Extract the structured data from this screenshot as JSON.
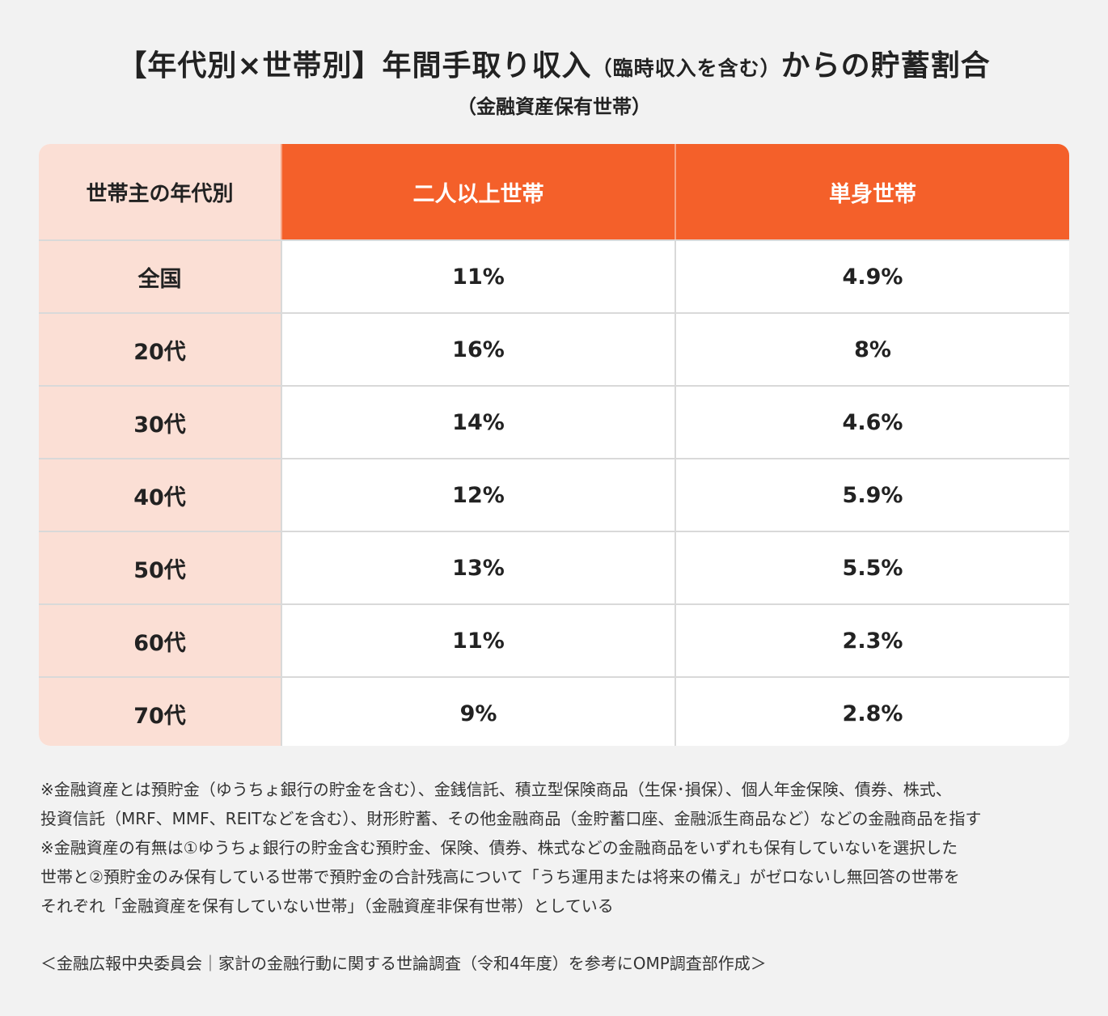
{
  "title": {
    "part1": "【年代別×世帯別】年間手取り収入",
    "part2": "（臨時収入を含む）",
    "part3": "からの貯蓄割合",
    "subtitle": "（金融資産保有世帯）"
  },
  "chart_data": {
    "type": "table",
    "title": "【年代別×世帯別】年間手取り収入（臨時収入を含む）からの貯蓄割合",
    "subtitle": "（金融資産保有世帯）",
    "columns": [
      "世帯主の年代別",
      "二人以上世帯",
      "単身世帯"
    ],
    "rows": [
      [
        "全国",
        "11%",
        "4.9%"
      ],
      [
        "20代",
        "16%",
        "8%"
      ],
      [
        "30代",
        "14%",
        "4.6%"
      ],
      [
        "40代",
        "12%",
        "5.9%"
      ],
      [
        "50代",
        "13%",
        "5.5%"
      ],
      [
        "60代",
        "11%",
        "2.3%"
      ],
      [
        "70代",
        "9%",
        "2.8%"
      ]
    ],
    "colors": {
      "header": "#f4602a",
      "label_column": "#fbdfd5",
      "background": "#f2f2f2"
    }
  },
  "notes": [
    "※金融資産とは預貯金（ゆうちょ銀行の貯金を含む）、金銭信託、積立型保険商品（生保･損保）、個人年金保険、債券、株式、",
    "投資信託（MRF、MMF、REITなどを含む）、財形貯蓄、その他金融商品（金貯蓄口座、金融派生商品など）などの金融商品を指す",
    "※金融資産の有無は①ゆうちょ銀行の貯金含む預貯金、保険、債券、株式などの金融商品をいずれも保有していないを選択した",
    "世帯と②預貯金のみ保有している世帯で預貯金の合計残高について「うち運用または将来の備え」がゼロないし無回答の世帯を",
    "それぞれ「金融資産を保有していない世帯」（金融資産非保有世帯）としている"
  ],
  "source": "＜金融広報中央委員会｜家計の金融行動に関する世論調査（令和4年度）を参考にOMP調査部作成＞"
}
